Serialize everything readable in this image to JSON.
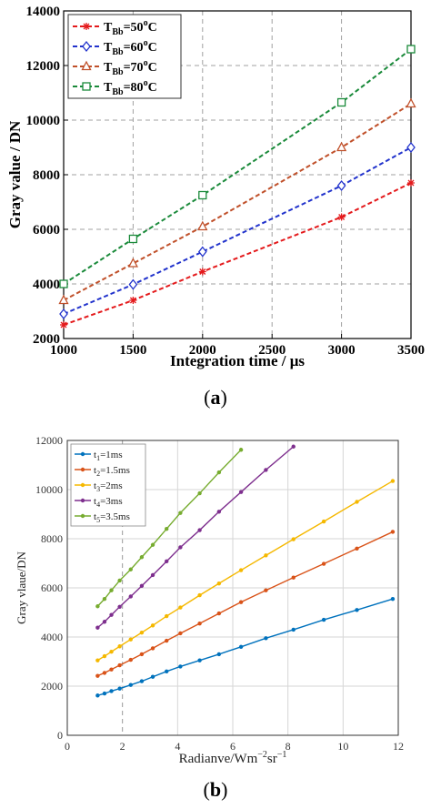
{
  "chart_data": [
    {
      "type": "line",
      "xlabel": "Integration time / μs",
      "ylabel": "Gray value / DN",
      "xlim": [
        1000,
        3500
      ],
      "ylim": [
        2000,
        14000
      ],
      "xticks": [
        1000,
        1500,
        2000,
        2500,
        3000,
        3500
      ],
      "yticks": [
        2000,
        4000,
        6000,
        8000,
        10000,
        12000,
        14000
      ],
      "grid": true,
      "legend_position": "top-left",
      "x": [
        1000,
        1500,
        2000,
        3000,
        3500
      ],
      "series": [
        {
          "name": "T",
          "sub": "Bb",
          "suffix": "=50",
          "sup": "o",
          "unit": "C",
          "color": "#e41a1c",
          "marker": "asterisk",
          "values": [
            2500,
            3400,
            4450,
            6450,
            7700
          ]
        },
        {
          "name": "T",
          "sub": "Bb",
          "suffix": "=60",
          "sup": "o",
          "unit": "C",
          "color": "#2233cc",
          "marker": "diamond",
          "values": [
            2900,
            3980,
            5180,
            7600,
            9000
          ]
        },
        {
          "name": "T",
          "sub": "Bb",
          "suffix": "=70",
          "sup": "o",
          "unit": "C",
          "color": "#c0502a",
          "marker": "triangle",
          "values": [
            3400,
            4750,
            6100,
            9000,
            10600
          ]
        },
        {
          "name": "T",
          "sub": "Bb",
          "suffix": "=80",
          "sup": "o",
          "unit": "C",
          "color": "#1a8a3a",
          "marker": "square",
          "values": [
            4000,
            5650,
            7250,
            10650,
            12600
          ]
        }
      ]
    },
    {
      "type": "line",
      "xlabel": "Radianve/Wm",
      "xlabel_sup1": "−2",
      "xlabel_mid": "sr",
      "xlabel_sup2": "−1",
      "ylabel": "Gray vlaue/DN",
      "xlim": [
        0,
        12
      ],
      "ylim": [
        0,
        12000
      ],
      "xticks": [
        0,
        2,
        4,
        6,
        8,
        10,
        12
      ],
      "yticks": [
        0,
        2000,
        4000,
        6000,
        8000,
        10000,
        12000
      ],
      "grid": true,
      "legend_position": "top-left",
      "series": [
        {
          "name": "t",
          "sub": "1",
          "suffix": "=1ms",
          "color": "#0072bd",
          "x": [
            1.1,
            1.35,
            1.6,
            1.9,
            2.3,
            2.7,
            3.1,
            3.6,
            4.1,
            4.8,
            5.5,
            6.3,
            7.2,
            8.2,
            9.3,
            10.5,
            11.8
          ],
          "values": [
            1620,
            1700,
            1800,
            1900,
            2050,
            2200,
            2380,
            2600,
            2800,
            3050,
            3300,
            3600,
            3950,
            4300,
            4700,
            5100,
            5550
          ]
        },
        {
          "name": "t",
          "sub": "2",
          "suffix": "=1.5ms",
          "color": "#d95319",
          "x": [
            1.1,
            1.35,
            1.6,
            1.9,
            2.3,
            2.7,
            3.1,
            3.6,
            4.1,
            4.8,
            5.5,
            6.3,
            7.2,
            8.2,
            9.3,
            10.5,
            11.8
          ],
          "values": [
            2420,
            2540,
            2680,
            2850,
            3070,
            3300,
            3540,
            3850,
            4150,
            4550,
            4960,
            5420,
            5900,
            6420,
            6980,
            7600,
            8280
          ]
        },
        {
          "name": "t",
          "sub": "3",
          "suffix": "=2ms",
          "color": "#f5b800",
          "x": [
            1.1,
            1.35,
            1.6,
            1.9,
            2.3,
            2.7,
            3.1,
            3.6,
            4.1,
            4.8,
            5.5,
            6.3,
            7.2,
            8.2,
            9.3,
            10.5,
            11.8
          ],
          "values": [
            3050,
            3220,
            3400,
            3620,
            3900,
            4180,
            4470,
            4850,
            5200,
            5700,
            6180,
            6720,
            7320,
            7980,
            8700,
            9500,
            10350
          ]
        },
        {
          "name": "t",
          "sub": "4",
          "suffix": "=3ms",
          "color": "#7e2f8e",
          "x": [
            1.1,
            1.35,
            1.6,
            1.9,
            2.3,
            2.7,
            3.1,
            3.6,
            4.1,
            4.8,
            5.5,
            6.3,
            7.2,
            8.2
          ],
          "values": [
            4380,
            4620,
            4900,
            5230,
            5650,
            6080,
            6520,
            7080,
            7650,
            8350,
            9100,
            9900,
            10800,
            11750
          ]
        },
        {
          "name": "t",
          "sub": "5",
          "suffix": "=3.5ms",
          "color": "#77ac30",
          "x": [
            1.1,
            1.35,
            1.6,
            1.9,
            2.3,
            2.7,
            3.1,
            3.6,
            4.1,
            4.8,
            5.5,
            6.3
          ],
          "values": [
            5250,
            5550,
            5900,
            6300,
            6750,
            7250,
            7750,
            8400,
            9050,
            9850,
            10700,
            11620
          ]
        }
      ]
    }
  ],
  "captions": {
    "a": {
      "open": "(",
      "letter": "a",
      "close": ")"
    },
    "b": {
      "open": "(",
      "letter": "b",
      "close": ")"
    }
  }
}
